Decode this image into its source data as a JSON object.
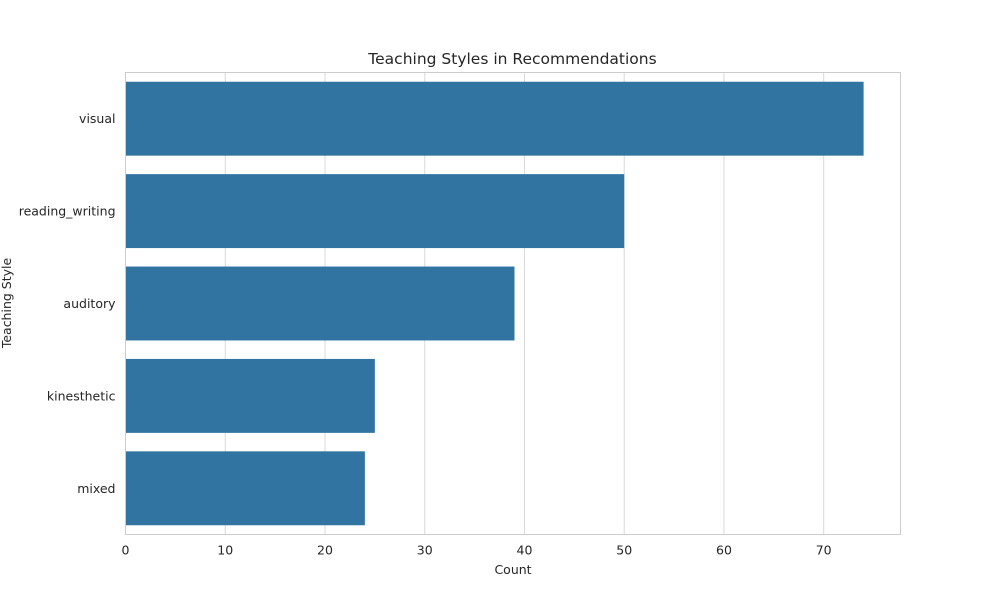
{
  "chart_data": {
    "type": "bar",
    "orientation": "horizontal",
    "title": "Teaching Styles in Recommendations",
    "xlabel": "Count",
    "ylabel": "Teaching Style",
    "categories": [
      "visual",
      "reading_writing",
      "auditory",
      "kinesthetic",
      "mixed"
    ],
    "values": [
      74,
      50,
      39,
      25,
      24
    ],
    "xlim": [
      0,
      77.7
    ],
    "xticks": [
      0,
      10,
      20,
      30,
      40,
      50,
      60,
      70
    ],
    "grid": true,
    "legend": "none",
    "bar_color": "#3274a1",
    "grid_color": "#d9d9d9",
    "frame_color": "#cccccc"
  }
}
